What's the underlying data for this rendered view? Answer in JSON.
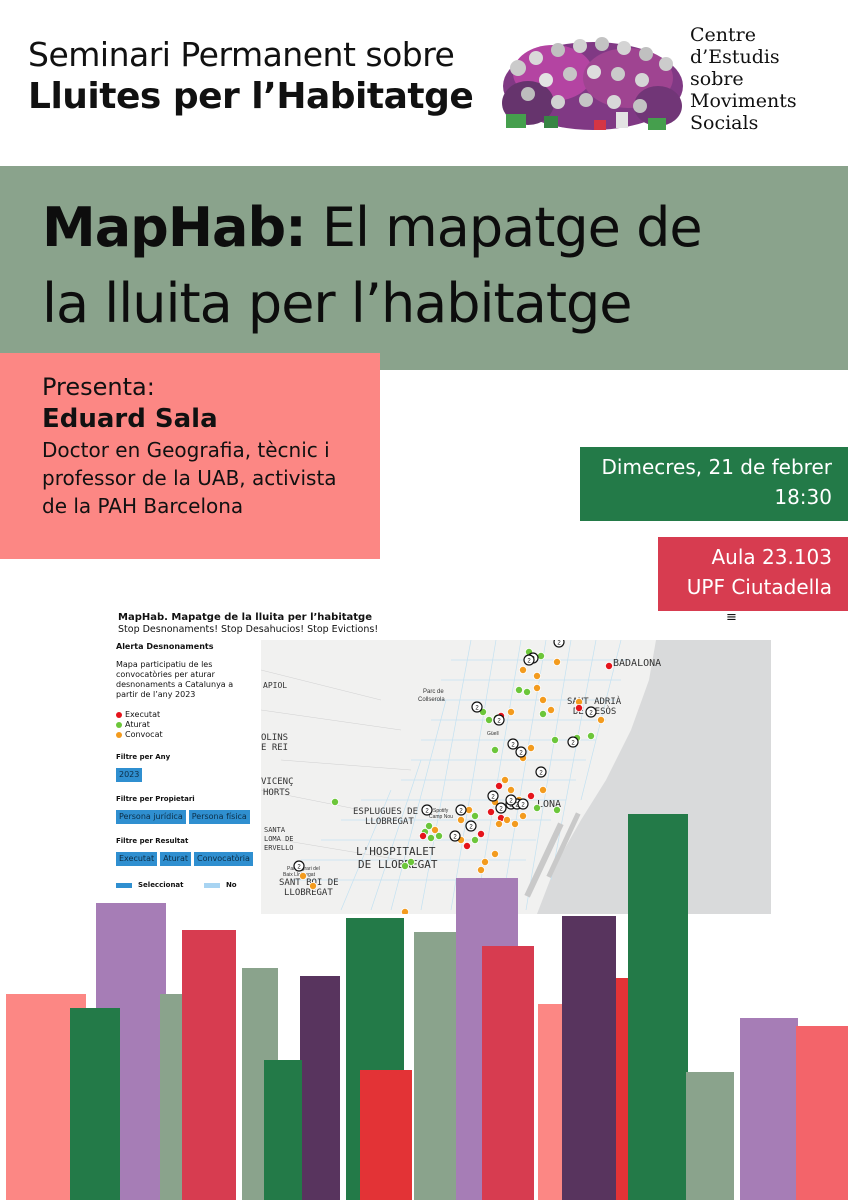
{
  "header": {
    "series_line1": "Seminari Permanent sobre",
    "series_line2": "Lluites per l’Habitatge",
    "centre_lines": [
      "Centre",
      "d’Estudis",
      "sobre",
      "Moviments",
      "Socials"
    ]
  },
  "title": {
    "bold": "MapHab:",
    "rest_line1": " El mapatge de",
    "line2": "la lluita per l’habitatge"
  },
  "presenter": {
    "label": "Presenta:",
    "name": "Eduard Sala",
    "bio": [
      "Doctor en Geografia, tècnic i",
      "professor de la UAB, activista",
      "de la PAH Barcelona"
    ]
  },
  "date": {
    "day": "Dimecres, 21 de febrer",
    "time": "18:30"
  },
  "room": {
    "aula": "Aula 23.103",
    "campus": "UPF Ciutadella"
  },
  "map_screenshot": {
    "title": "MapHab. Mapatge de la lluita per l’habitatge",
    "subtitle": "Stop Desnonaments! Stop Desahucios! Stop Evictions!",
    "menu_icon": "≡",
    "sidebar": {
      "heading": "Alerta Desnonaments",
      "description": "Mapa participatiu de les convocatòries per aturar desnonaments a Catalunya a partir de l’any 2023",
      "legend": [
        {
          "label": "Executat",
          "color": "#e5141b"
        },
        {
          "label": "Aturat",
          "color": "#6cc63a"
        },
        {
          "label": "Convocat",
          "color": "#f39b1e"
        }
      ],
      "filter_year_label": "Filtre per Any",
      "filter_year_chips": [
        "2023"
      ],
      "filter_owner_label": "Filtre per Propietari",
      "filter_owner_chips": [
        "Persona jurídica",
        "Persona física"
      ],
      "filter_result_label": "Filtre per Resultat",
      "filter_result_chips": [
        "Executat",
        "Aturat",
        "Convocatòria"
      ],
      "key_selected": "Seleccionat",
      "key_no": "No"
    },
    "map_labels": {
      "badalona": "BADALONA",
      "sant_adria_1": "SANT ADRIÀ",
      "sant_adria_2": "DE BESÒS",
      "parc_1": "Parc de",
      "parc_2": "Collserola",
      "apiol": "APIOL",
      "olins_1": "OLINS",
      "olins_2": "E REI",
      "vicenc_1": "VICENÇ",
      "vicenc_2": "HORTS",
      "esplugues_1": "ESPLUGUES DE",
      "esplugues_2": "LLOBREGAT",
      "hospitalet_1": "L'HOSPITALET",
      "hospitalet_2": "DE LLOBREGAT",
      "santboi_1": "SANT BOI DE",
      "santboi_2": "LLOBREGAT",
      "santa_1": "SANTA",
      "santa_2": "LOMA DE",
      "santa_3": "ERVELLO",
      "lona": "LONA",
      "guell": "Güell",
      "spotify_1": "Spotify",
      "spotify_2": "Camp Nou",
      "parc_agrari_1": "Parc Agrari del",
      "parc_agrari_2": "Baix Llobregat"
    }
  },
  "colors": {
    "band_green": "#8aa38c",
    "salmon": "#fc8784",
    "dark_green": "#237a48",
    "crimson": "#d73c50",
    "purple": "#a67db6",
    "plum": "#58345e",
    "red": "#e33336",
    "pink": "#fc8784",
    "sage": "#8aa38c"
  }
}
